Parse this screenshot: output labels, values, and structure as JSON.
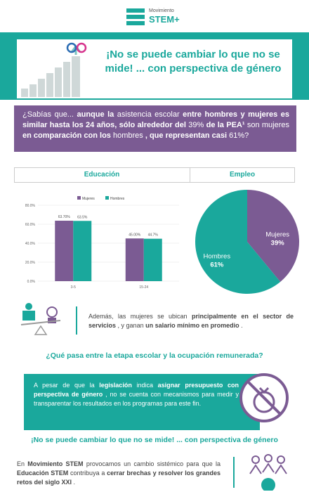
{
  "header": {
    "brand_top": "Movimiento",
    "brand_bottom": "STEM+"
  },
  "banner": {
    "title": "¡No se puede cambiar lo que no se mide! ... con perspectiva de género"
  },
  "intro": {
    "parts": [
      "¿Sabías que...",
      "aunque la",
      "asistencia escolar",
      "entre hombres y mujeres es similar hasta los 24 años, sólo alrededor del",
      "39%",
      "de la PEA¹",
      "son mujeres",
      "en comparación con los",
      "hombres",
      ", que representan casi",
      "61%?"
    ]
  },
  "tabs": [
    "Educación",
    "Empleo"
  ],
  "chart_data": [
    {
      "type": "bar",
      "categories": [
        "3-5",
        "15-24"
      ],
      "series": [
        {
          "name": "Mujeres",
          "color": "#7b5b93",
          "values": [
            63.7,
            45.0
          ],
          "value_labels": [
            "63.70%",
            "45.00%"
          ]
        },
        {
          "name": "Hombres",
          "color": "#1aa89c",
          "values": [
            63.5,
            44.7
          ],
          "value_labels": [
            "63.5%",
            "44.7%"
          ]
        }
      ],
      "ylim": [
        0,
        80
      ],
      "yticks": [
        {
          "value": 0,
          "label": "0.0%"
        },
        {
          "value": 20,
          "label": "20.0%"
        },
        {
          "value": 40,
          "label": "40.0%"
        },
        {
          "value": 60,
          "label": "60.0%"
        },
        {
          "value": 80,
          "label": "80.0%"
        }
      ],
      "grid": true
    },
    {
      "type": "pie",
      "categories": [
        "Mujeres",
        "Hombres"
      ],
      "values": [
        39,
        61
      ],
      "value_labels": [
        "39%",
        "61%"
      ],
      "colors": [
        "#7b5b93",
        "#1aa89c"
      ]
    }
  ],
  "services": {
    "parts": [
      "Además, las mujeres se ubican",
      "principalmente en el sector de servicios",
      ", y ganan",
      "un salario mínimo en promedio",
      "."
    ]
  },
  "question": "¿Qué pasa entre la etapa escolar y la ocupación remunerada?",
  "budget": {
    "parts": [
      "A pesar de que la",
      "legislación",
      "indica",
      "asignar presupuesto con perspectiva de género",
      ", no se cuenta con mecanismos para medir y transparentar los resultados en los programas para este fin."
    ]
  },
  "closing_title": "¡No se puede cambiar lo que no se mide! ... con perspectiva de género",
  "closing": {
    "parts": [
      "En",
      "Movimiento STEM",
      "provocamos un cambio sistémico para que la",
      "Educación STEM",
      "contribuya a",
      "cerrar brechas y resolver los grandes retos del siglo XXI",
      "."
    ]
  }
}
